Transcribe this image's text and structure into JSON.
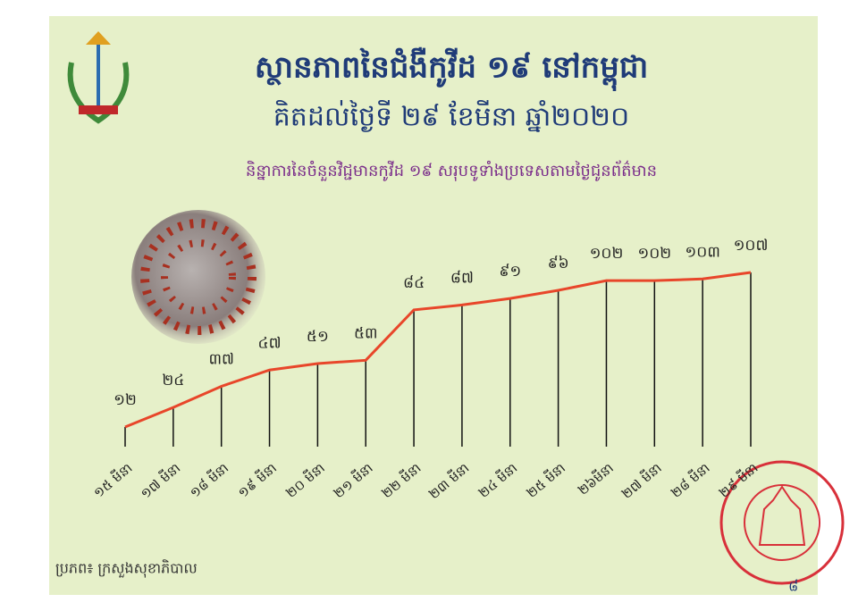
{
  "chart_data": {
    "type": "line",
    "title": "ស្ថានភាពនៃជំងឺកូវីដ ១៩ នៅកម្ពុជា",
    "subtitle": "គិតដល់ថ្ងៃទី ២៩ ខែមីនា ឆ្នាំ២០២០",
    "description": "និន្នាការនៃចំនួនវិជ្ជមានកូវីដ ១៩ សរុបទូទាំងប្រទេសតាមថ្ងៃជូនព័ត៌មាន",
    "source": "ប្រភព៖ ក្រសួងសុខាភិបាល",
    "page_number": "៨",
    "categories": [
      "១៥ មីនា",
      "១៧ មីនា",
      "១៨ មីនា",
      "១៩ មីនា",
      "២០ មីនា",
      "២១ មីនា",
      "២២ មីនា",
      "២៣ មីនា",
      "២៤ មីនា",
      "២៥ មីនា",
      "២៦មីនា",
      "២៧ មីនា",
      "២៨ មីនា",
      "២៩ មីនា"
    ],
    "values": [
      12,
      24,
      37,
      47,
      51,
      53,
      84,
      87,
      91,
      96,
      102,
      102,
      103,
      107
    ],
    "value_labels": [
      "១២",
      "២៤",
      "៣៧",
      "៤៧",
      "៥១",
      "៥៣",
      "៨៤",
      "៨៧",
      "៩១",
      "៩៦",
      "១០២",
      "១០២",
      "១០៣",
      "១០៧"
    ],
    "color": "#e8462a"
  }
}
